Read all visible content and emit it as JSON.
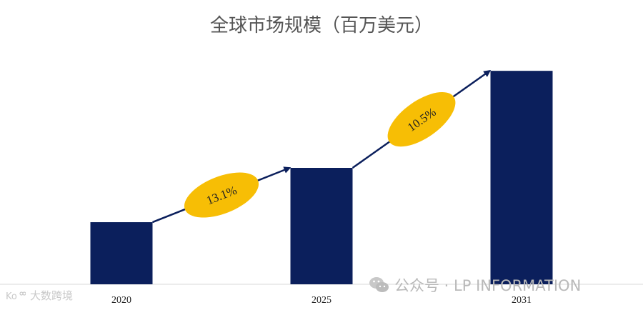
{
  "chart_data": {
    "type": "bar",
    "title": "全球市场规模（百万美元）",
    "categories": [
      "2020",
      "2025",
      "2031"
    ],
    "values": [
      80,
      150,
      275
    ],
    "ylim": [
      0,
      300
    ],
    "bar_color": "#0b1f5c",
    "arrow_color": "#0b1f5c",
    "annotations": [
      {
        "from": 0,
        "to": 1,
        "text": "13.1%"
      },
      {
        "from": 1,
        "to": 2,
        "text": "10.5%"
      }
    ],
    "annotation_color": "#f7be05",
    "grid": false,
    "legend": "none"
  },
  "watermarks": {
    "right": "公众号 · LP INFORMATION",
    "left": "大数跨境"
  }
}
